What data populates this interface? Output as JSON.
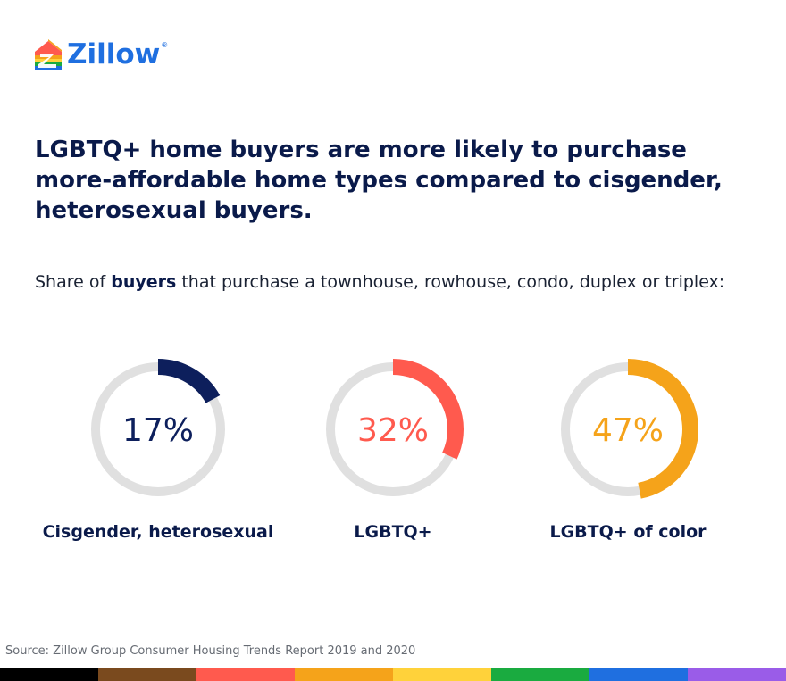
{
  "brand": {
    "name": "Zillow",
    "registered_mark": "®",
    "color": "#1f6fe0"
  },
  "headline": "LGBTQ+ home buyers are more likely to purchase more-affordable home types compared to cisgender, heterosexual buyers.",
  "subtitle": {
    "prefix": "Share of ",
    "bold": "buyers",
    "suffix": " that purchase a townhouse, rowhouse, condo, duplex or triplex:"
  },
  "chart_data": {
    "type": "pie",
    "subtype": "donut",
    "title": "Share of buyers that purchase a townhouse, rowhouse, condo, duplex or triplex:",
    "unit": "%",
    "track_color": "#e0e0e0",
    "series": [
      {
        "name": "Cisgender, heterosexual",
        "value": 17,
        "label": "17%",
        "color": "#0d1f5c"
      },
      {
        "name": "LGBTQ+",
        "value": 32,
        "label": "32%",
        "color": "#ff5a4e"
      },
      {
        "name": "LGBTQ+ of color",
        "value": 47,
        "label": "47%",
        "color": "#f5a31a"
      }
    ]
  },
  "source": "Source: Zillow Group Consumer Housing Trends Report 2019 and 2020",
  "pride_stripe": [
    "#000000",
    "#7a4a1e",
    "#ff5a4e",
    "#f5a31a",
    "#ffd23a",
    "#1aab40",
    "#1f6fe0",
    "#9a5ce8"
  ]
}
